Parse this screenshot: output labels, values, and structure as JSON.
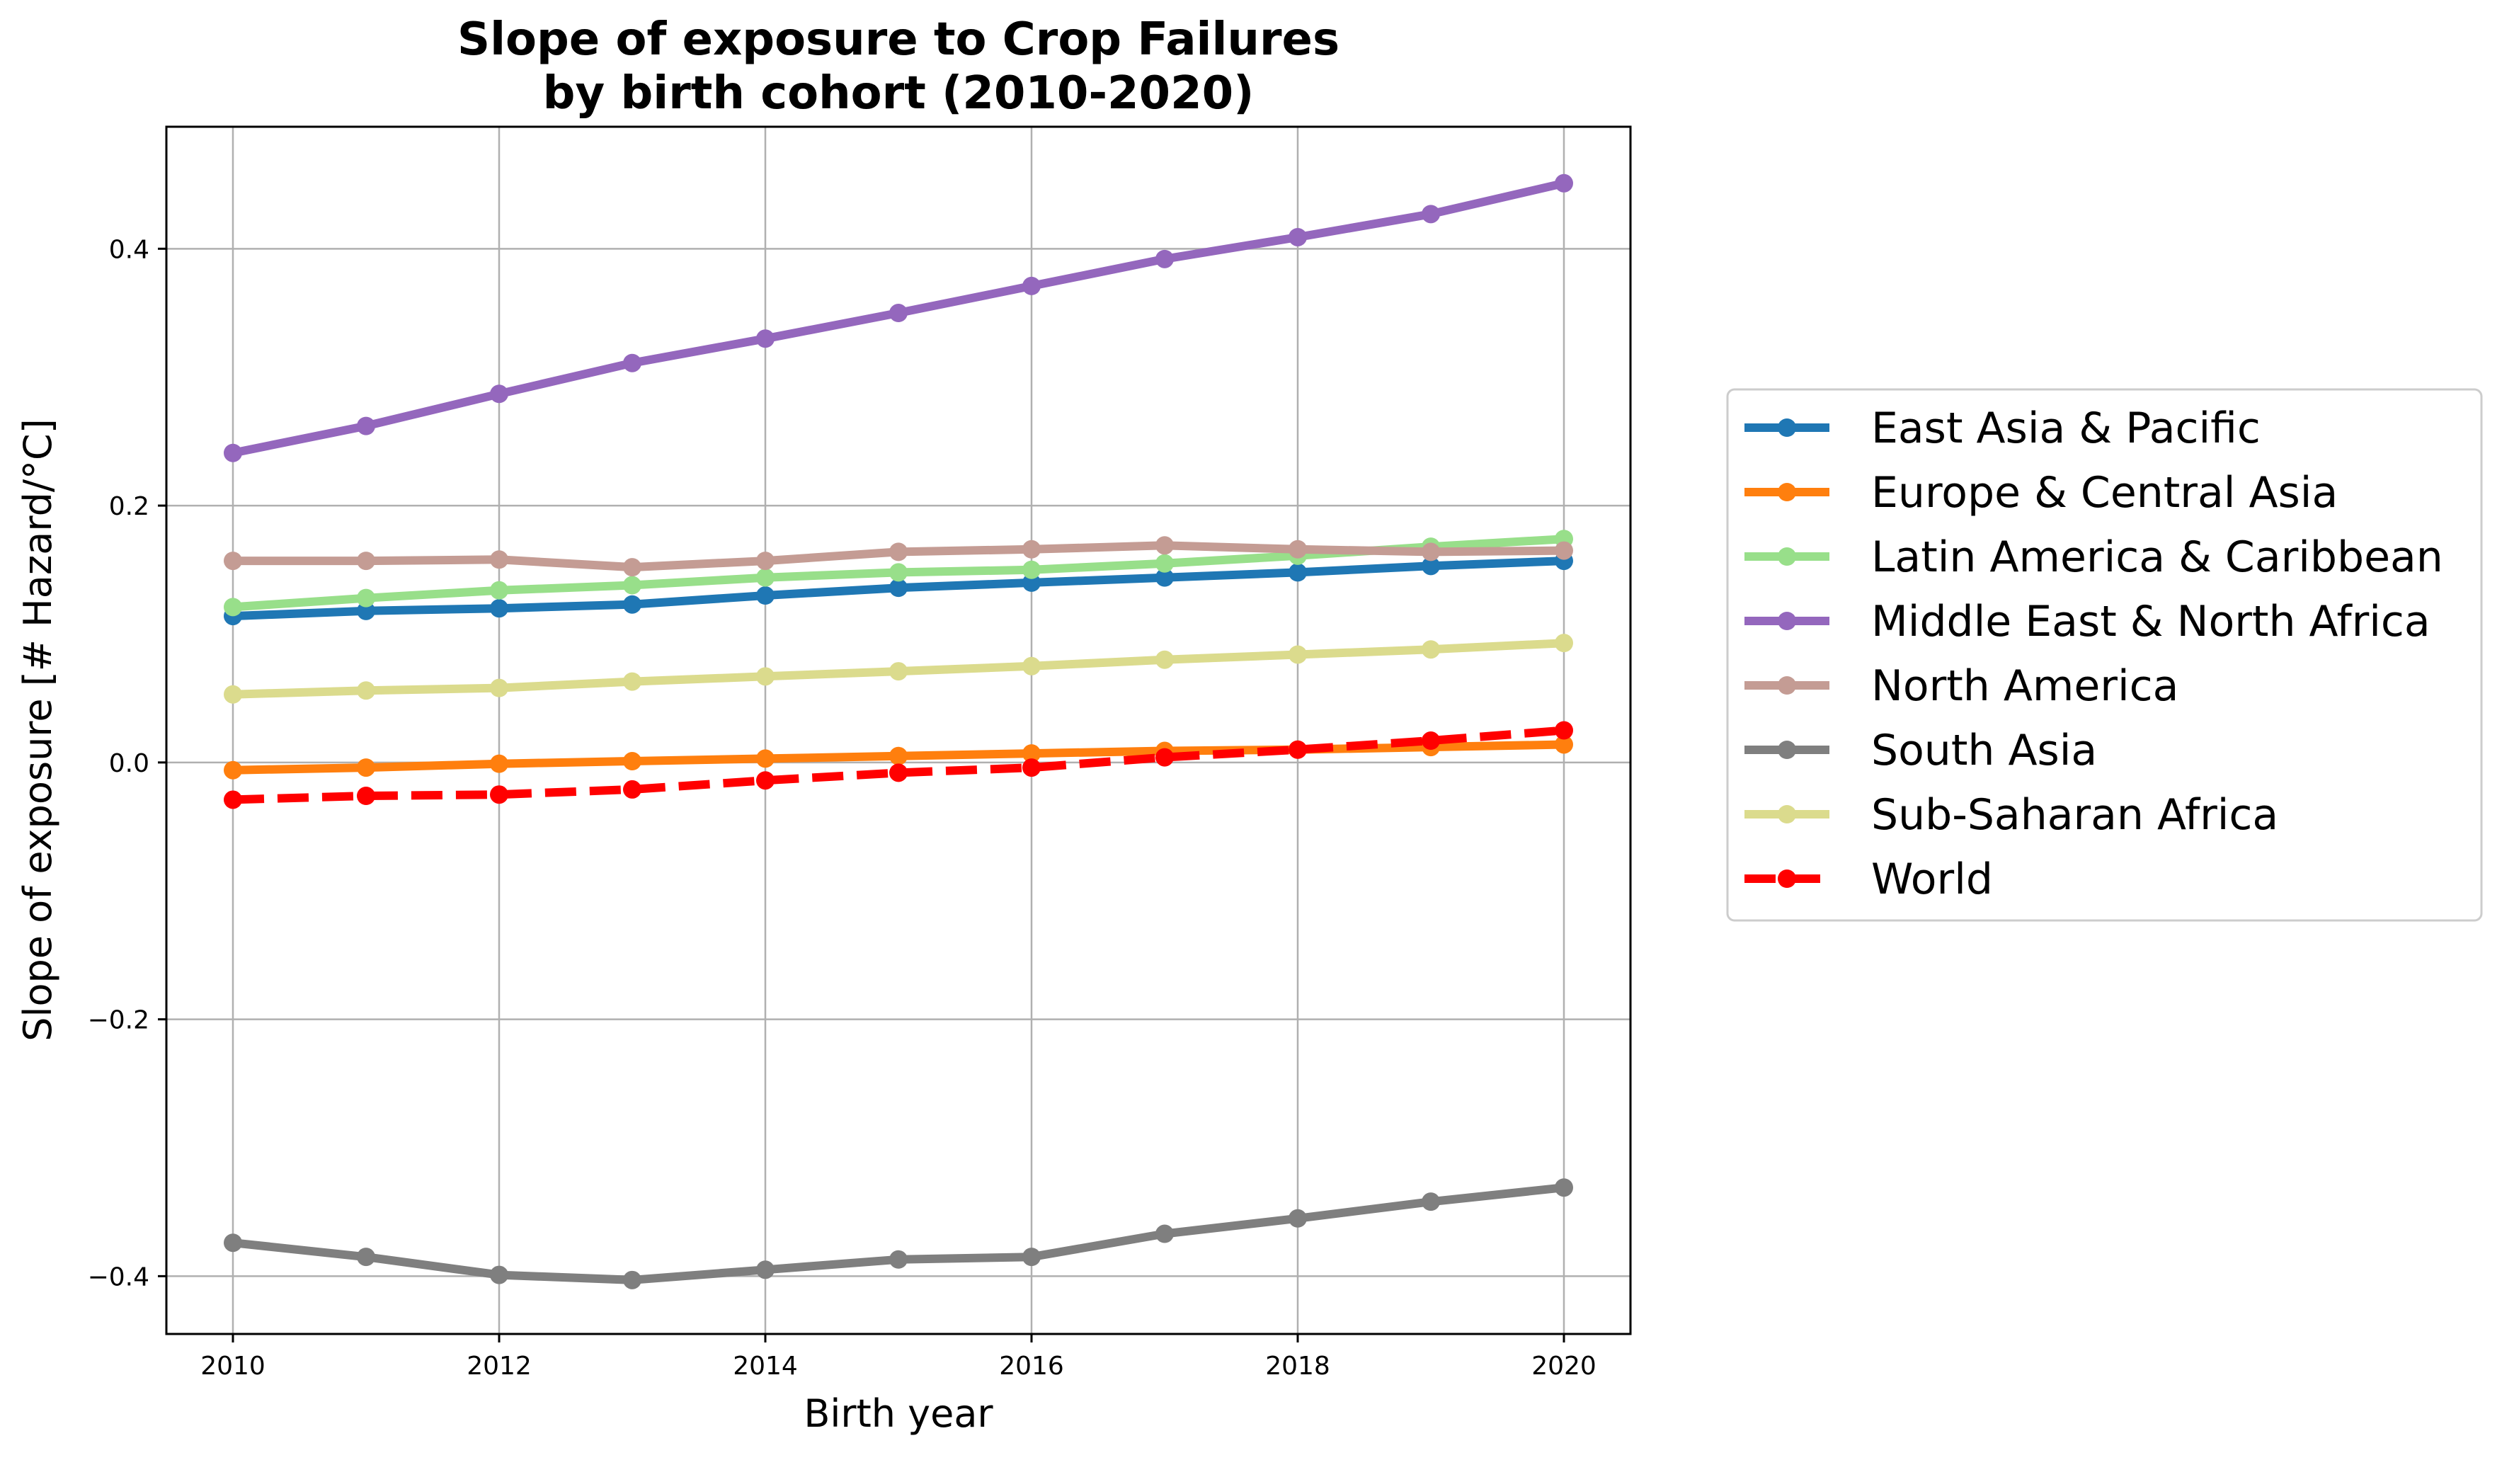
{
  "chart_data": {
    "type": "line",
    "title": "Slope of exposure to Crop Failures\nby birth cohort (2010-2020)",
    "xlabel": "Birth year",
    "ylabel": "Slope of exposure [# Hazard/°C]",
    "xlim": [
      2009.5,
      2020.5
    ],
    "ylim": [
      -0.445,
      0.495
    ],
    "grid": true,
    "legend_position": "right",
    "x": [
      2010,
      2011,
      2012,
      2013,
      2014,
      2015,
      2016,
      2017,
      2018,
      2019,
      2020
    ],
    "xticks": [
      2010,
      2012,
      2014,
      2016,
      2018,
      2020
    ],
    "xtick_labels": [
      "2010",
      "2012",
      "2014",
      "2016",
      "2018",
      "2020"
    ],
    "yticks": [
      -0.4,
      -0.2,
      0.0,
      0.2,
      0.4
    ],
    "ytick_labels": [
      "−0.4",
      "−0.2",
      "0.0",
      "0.2",
      "0.4"
    ],
    "series": [
      {
        "name": "East Asia & Pacific",
        "color": "#1f77b4",
        "dashed": false,
        "values": [
          0.114,
          0.118,
          0.12,
          0.123,
          0.13,
          0.136,
          0.14,
          0.144,
          0.148,
          0.153,
          0.157
        ]
      },
      {
        "name": "Europe & Central Asia",
        "color": "#ff7f0e",
        "dashed": false,
        "values": [
          -0.006,
          -0.004,
          -0.001,
          0.001,
          0.003,
          0.005,
          0.007,
          0.009,
          0.01,
          0.012,
          0.014
        ]
      },
      {
        "name": "Latin America & Caribbean",
        "color": "#98df8a",
        "dashed": false,
        "values": [
          0.121,
          0.128,
          0.134,
          0.138,
          0.144,
          0.148,
          0.15,
          0.155,
          0.161,
          0.168,
          0.174
        ]
      },
      {
        "name": "Middle East & North Africa",
        "color": "#9467bd",
        "dashed": false,
        "values": [
          0.241,
          0.262,
          0.287,
          0.311,
          0.33,
          0.35,
          0.371,
          0.392,
          0.409,
          0.427,
          0.451
        ]
      },
      {
        "name": "North America",
        "color": "#c49c94",
        "dashed": false,
        "values": [
          0.157,
          0.157,
          0.158,
          0.152,
          0.157,
          0.164,
          0.166,
          0.169,
          0.166,
          0.164,
          0.165
        ]
      },
      {
        "name": "South Asia",
        "color": "#7f7f7f",
        "dashed": false,
        "values": [
          -0.374,
          -0.385,
          -0.399,
          -0.403,
          -0.395,
          -0.387,
          -0.385,
          -0.367,
          -0.355,
          -0.342,
          -0.331
        ]
      },
      {
        "name": "Sub-Saharan Africa",
        "color": "#dbdb8d",
        "dashed": false,
        "values": [
          0.053,
          0.056,
          0.058,
          0.063,
          0.067,
          0.071,
          0.075,
          0.08,
          0.084,
          0.088,
          0.093
        ]
      },
      {
        "name": "World",
        "color": "#ff0000",
        "dashed": true,
        "values": [
          -0.029,
          -0.026,
          -0.025,
          -0.021,
          -0.014,
          -0.008,
          -0.004,
          0.004,
          0.01,
          0.017,
          0.025
        ]
      }
    ]
  }
}
